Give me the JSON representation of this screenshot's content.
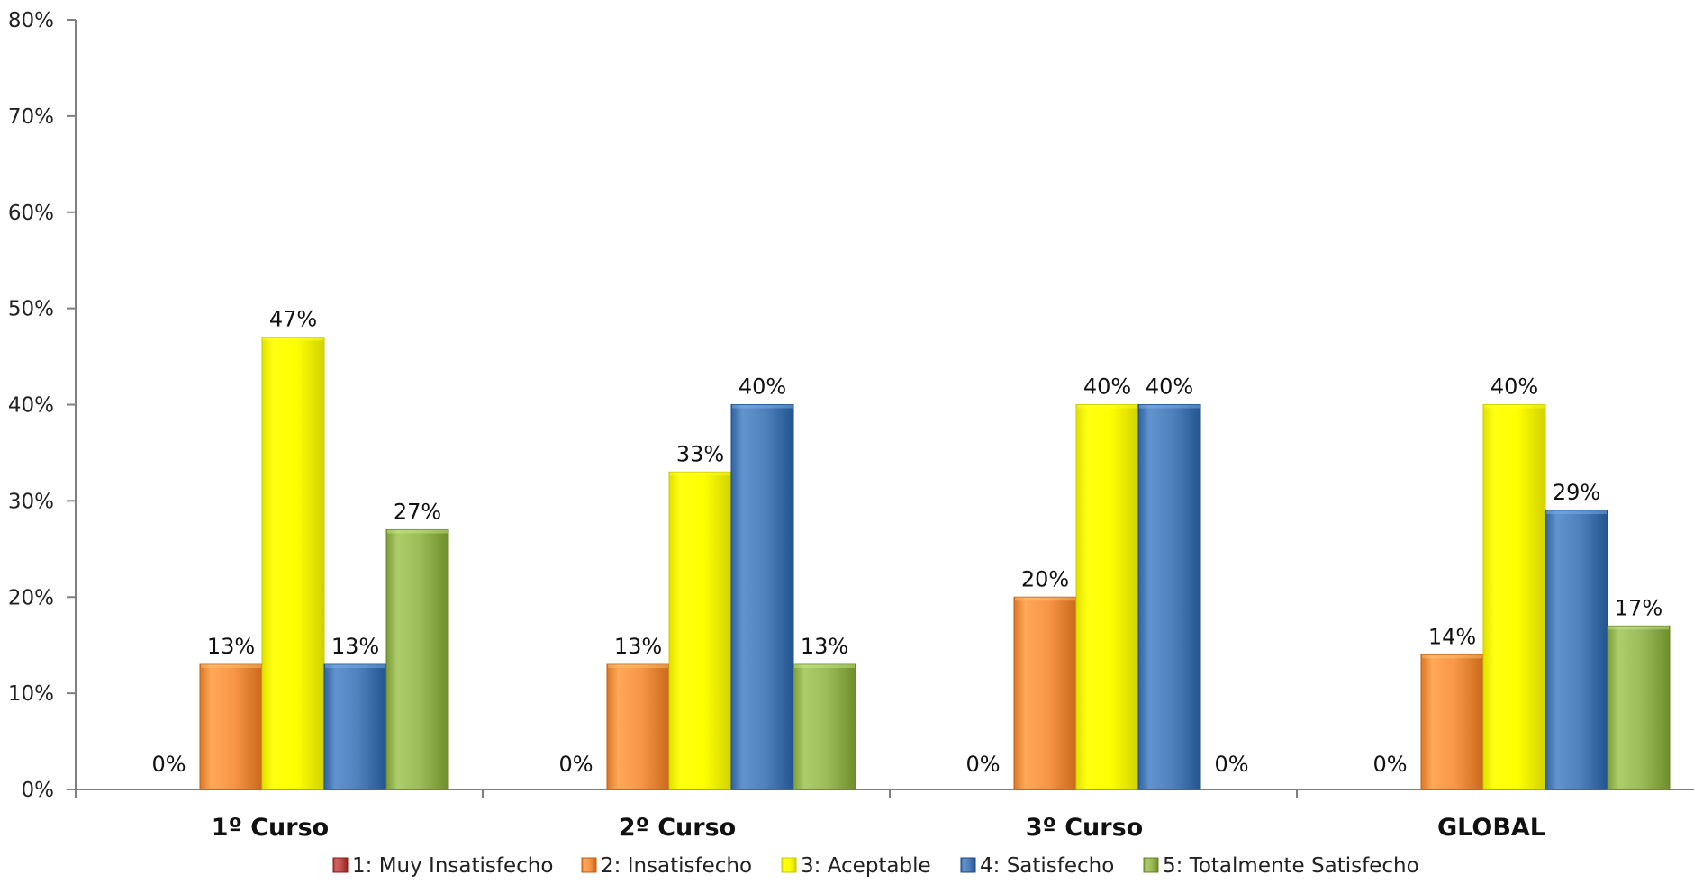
{
  "chart_data": {
    "type": "bar",
    "categories": [
      "1º Curso",
      "2º Curso",
      "3º Curso",
      "GLOBAL"
    ],
    "ylim": [
      0,
      80
    ],
    "ytick_values": [
      0,
      10,
      20,
      30,
      40,
      50,
      60,
      70,
      80
    ],
    "ytick_labels": [
      "0%",
      "10%",
      "20%",
      "30%",
      "40%",
      "50%",
      "60%",
      "70%",
      "80%"
    ],
    "grid": false,
    "legend_position": "bottom",
    "series": [
      {
        "name": "1: Muy Insatisfecho",
        "color": "#C0504D",
        "values": [
          0,
          0,
          0,
          0
        ],
        "labels": [
          "0%",
          "0%",
          "0%",
          "0%"
        ]
      },
      {
        "name": "2: Insatisfecho",
        "color": "#F79646",
        "values": [
          13,
          13,
          20,
          14
        ],
        "labels": [
          "13%",
          "13%",
          "20%",
          "14%"
        ]
      },
      {
        "name": "3: Aceptable",
        "color": "#FFFF00",
        "values": [
          47,
          33,
          40,
          40
        ],
        "labels": [
          "47%",
          "33%",
          "40%",
          "40%"
        ]
      },
      {
        "name": "4: Satisfecho",
        "color": "#4F81BD",
        "values": [
          13,
          40,
          40,
          29
        ],
        "labels": [
          "13%",
          "40%",
          "40%",
          "29%"
        ]
      },
      {
        "name": "5: Totalmente Satisfecho",
        "color": "#9BBB59",
        "values": [
          27,
          13,
          0,
          17
        ],
        "labels": [
          "27%",
          "13%",
          "0%",
          "17%"
        ]
      }
    ]
  }
}
